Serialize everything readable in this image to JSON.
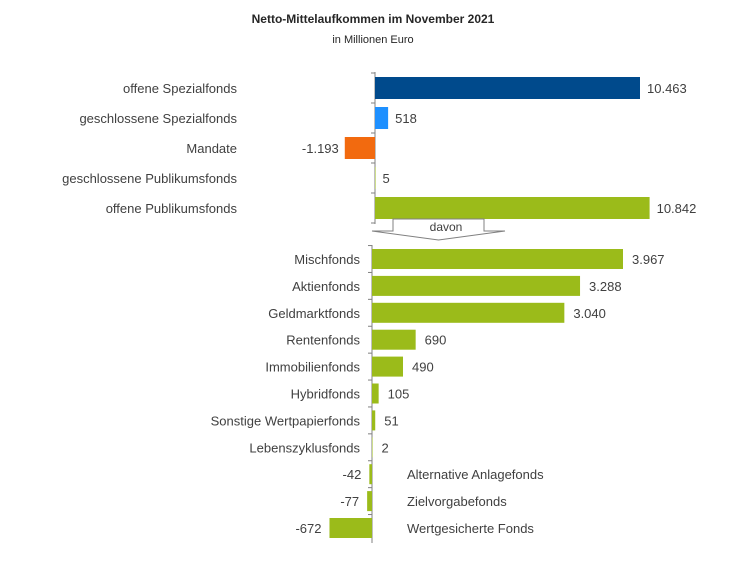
{
  "chart_data": {
    "title": "Netto-Mittelaufkommen im November 2021",
    "subtitle": "in Millionen Euro",
    "type": "bar",
    "orientation": "horizontal",
    "arrow_label": "davon",
    "panels": [
      {
        "categories": [
          "offene Spezialfonds",
          "geschlossene Spezialfonds",
          "Mandate",
          "geschlossene Publikumsfonds",
          "offene Publikumsfonds"
        ],
        "values": [
          10463,
          518,
          -1193,
          5,
          10842
        ],
        "labels": [
          "10.463",
          "518",
          "-1.193",
          "5",
          "10.842"
        ],
        "colors": [
          "#004a8c",
          "#1e90ff",
          "#f26a0f",
          "#9bbb1a",
          "#9bbb1a"
        ]
      },
      {
        "categories": [
          "Mischfonds",
          "Aktienfonds",
          "Geldmarktfonds",
          "Rentenfonds",
          "Immobilienfonds",
          "Hybridfonds",
          "Sonstige Wertpapierfonds",
          "Lebenszyklusfonds",
          "Alternative Anlagefonds",
          "Zielvorgabefonds",
          "Wertgesicherte Fonds"
        ],
        "values": [
          3967,
          3288,
          3040,
          690,
          490,
          105,
          51,
          2,
          -42,
          -77,
          -672
        ],
        "labels": [
          "3.967",
          "3.288",
          "3.040",
          "690",
          "490",
          "105",
          "51",
          "2",
          "-42",
          "-77",
          "-672"
        ],
        "color": "#9bbb1a"
      }
    ]
  }
}
